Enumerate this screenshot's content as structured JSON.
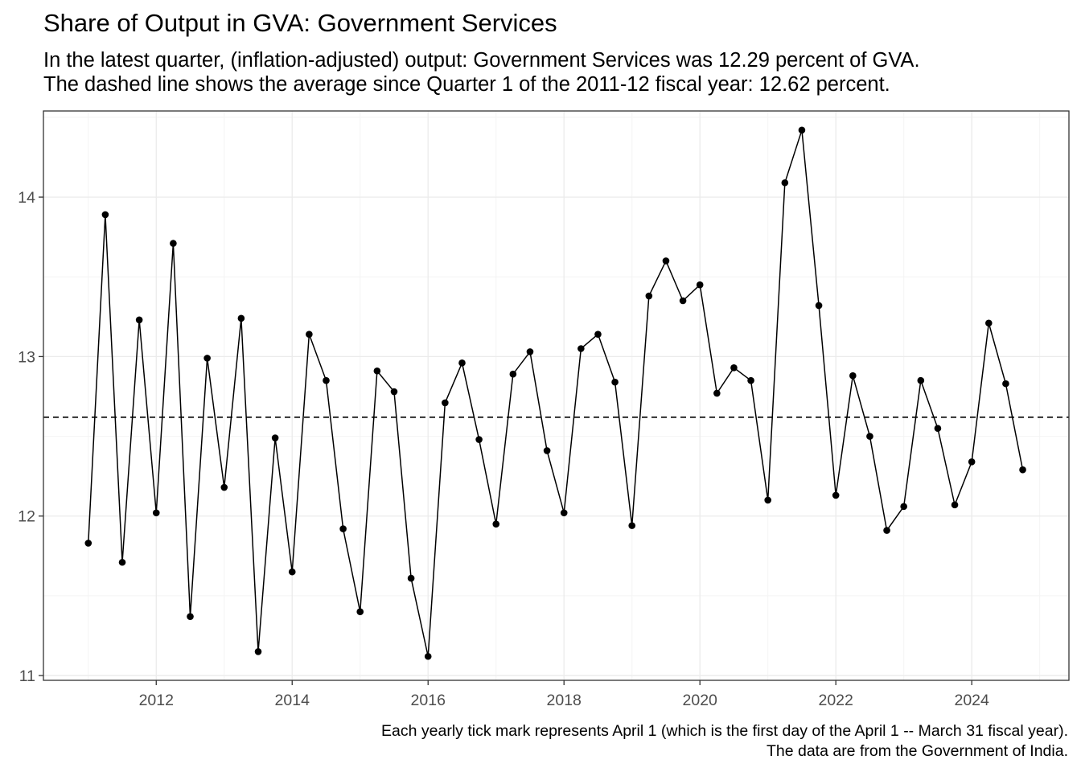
{
  "chart_data": {
    "type": "line",
    "title": "Share of Output in GVA: Government Services",
    "subtitle_lines": [
      "In the latest quarter, (inflation-adjusted) output: Government Services was 12.29 percent of GVA.",
      "The dashed line shows the average since Quarter 1 of the 2011-12 fiscal year: 12.62 percent."
    ],
    "caption_lines": [
      "Each yearly tick mark represents April 1 (which is the first day of the April 1 -- March 31 fiscal year).",
      "The data are from the Government of India."
    ],
    "xlabel": "",
    "ylabel": "",
    "x_ticks": [
      "2012",
      "2014",
      "2016",
      "2018",
      "2020",
      "2022",
      "2024"
    ],
    "y_ticks": [
      "11",
      "12",
      "13",
      "14"
    ],
    "xlim": [
      2010.34,
      2025.43
    ],
    "ylim": [
      10.97,
      14.54
    ],
    "grid": true,
    "average_line": {
      "value": 12.62,
      "style": "dashed"
    },
    "series": [
      {
        "x": [
          2011.0,
          2011.25,
          2011.5,
          2011.75,
          2012.0,
          2012.25,
          2012.5,
          2012.75,
          2013.0,
          2013.25,
          2013.5,
          2013.75,
          2014.0,
          2014.25,
          2014.5,
          2014.75,
          2015.0,
          2015.25,
          2015.5,
          2015.75,
          2016.0,
          2016.25,
          2016.5,
          2016.75,
          2017.0,
          2017.25,
          2017.5,
          2017.75,
          2018.0,
          2018.25,
          2018.5,
          2018.75,
          2019.0,
          2019.25,
          2019.5,
          2019.75,
          2020.0,
          2020.25,
          2020.5,
          2020.75,
          2021.0,
          2021.25,
          2021.5,
          2021.75,
          2022.0,
          2022.25,
          2022.5,
          2022.75,
          2023.0,
          2023.25,
          2023.5,
          2023.75,
          2024.0,
          2024.25,
          2024.5,
          2024.75
        ],
        "values": [
          11.83,
          13.89,
          11.71,
          13.23,
          12.02,
          13.71,
          11.37,
          12.99,
          12.18,
          13.24,
          11.15,
          12.49,
          11.65,
          13.14,
          12.85,
          11.92,
          11.4,
          12.91,
          12.78,
          11.61,
          11.12,
          12.71,
          12.96,
          12.48,
          11.95,
          12.89,
          13.03,
          12.41,
          12.02,
          13.05,
          13.14,
          12.84,
          11.94,
          13.38,
          13.6,
          13.35,
          13.45,
          12.77,
          12.93,
          12.85,
          12.1,
          14.09,
          14.42,
          13.32,
          12.13,
          12.88,
          12.5,
          11.91,
          12.06,
          12.85,
          12.55,
          12.07,
          12.34,
          13.21,
          12.83,
          12.29
        ]
      }
    ],
    "colors": {
      "line": "#000000",
      "point": "#000000",
      "grid_major": "#ebebeb",
      "grid_minor": "#f4f4f4",
      "panel_border": "#333333",
      "tick_text": "#4d4d4d"
    }
  }
}
